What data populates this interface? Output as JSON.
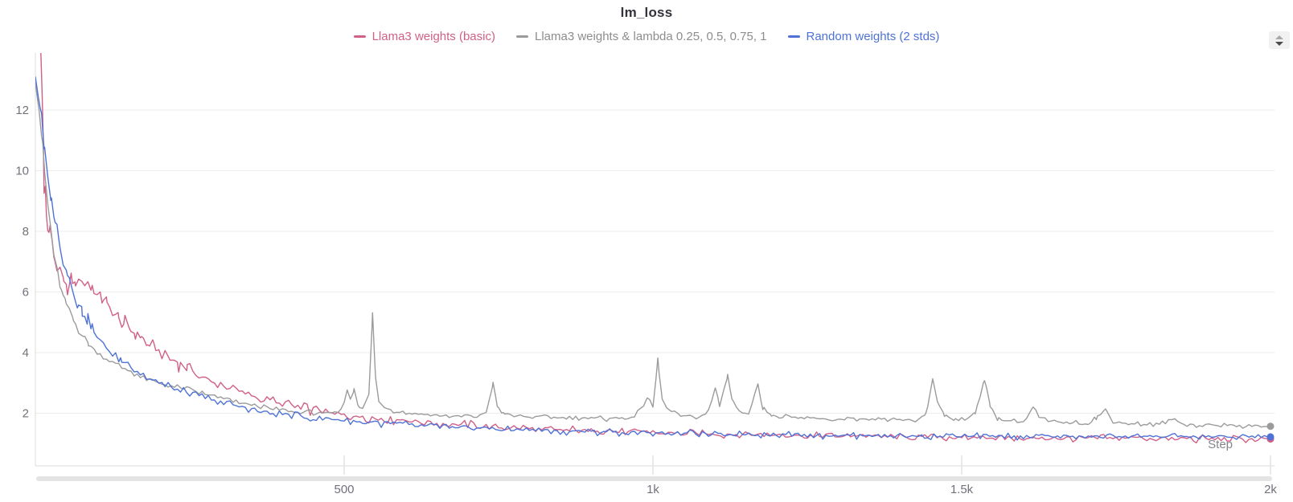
{
  "chart_data": {
    "type": "line",
    "title": "lm_loss",
    "xlabel": "Step",
    "ylabel": "",
    "xlim": [
      0,
      2000
    ],
    "ylim": [
      0,
      14
    ],
    "grid": "horizontal",
    "legend_position": "top-center",
    "xticks": {
      "values": [
        500,
        1000,
        1500,
        2000
      ],
      "labels": [
        "500",
        "1k",
        "1.5k",
        "2k"
      ]
    },
    "yticks": {
      "values": [
        2,
        4,
        6,
        8,
        10,
        12
      ],
      "labels": [
        "2",
        "4",
        "6",
        "8",
        "10",
        "12"
      ]
    },
    "axis_colors": {
      "tick_label": "#72717c",
      "axis_line": "#e2e2e2",
      "gridline": "#ededed",
      "step_label": "#84848d"
    },
    "series": [
      {
        "name": "Llama3 weights (basic)",
        "color": "#d06088",
        "noise": 0.085,
        "seed": 1,
        "points": [
          [
            0,
            15
          ],
          [
            8,
            14.3
          ],
          [
            11,
            12.5
          ],
          [
            13,
            10.5
          ],
          [
            14,
            9.2
          ],
          [
            16,
            9.5
          ],
          [
            18,
            8.6
          ],
          [
            22,
            8.1
          ],
          [
            24,
            8.3
          ],
          [
            27,
            7.5
          ],
          [
            31,
            7.0
          ],
          [
            35,
            6.7
          ],
          [
            40,
            6.45
          ],
          [
            46,
            6.3
          ],
          [
            52,
            6.25
          ],
          [
            58,
            6.35
          ],
          [
            64,
            6.25
          ],
          [
            70,
            6.3
          ],
          [
            75,
            6.5
          ],
          [
            80,
            6.3
          ],
          [
            86,
            6.2
          ],
          [
            92,
            6.1
          ],
          [
            100,
            5.95
          ],
          [
            108,
            5.8
          ],
          [
            116,
            5.65
          ],
          [
            125,
            5.4
          ],
          [
            134,
            5.2
          ],
          [
            143,
            5.0
          ],
          [
            152,
            4.8
          ],
          [
            162,
            4.6
          ],
          [
            172,
            4.45
          ],
          [
            182,
            4.3
          ],
          [
            192,
            4.15
          ],
          [
            205,
            3.95
          ],
          [
            218,
            3.8
          ],
          [
            232,
            3.6
          ],
          [
            246,
            3.45
          ],
          [
            260,
            3.3
          ],
          [
            275,
            3.15
          ],
          [
            290,
            3.0
          ],
          [
            305,
            2.9
          ],
          [
            320,
            2.8
          ],
          [
            335,
            2.7
          ],
          [
            350,
            2.6
          ],
          [
            365,
            2.5
          ],
          [
            385,
            2.4
          ],
          [
            405,
            2.3
          ],
          [
            425,
            2.2
          ],
          [
            445,
            2.12
          ],
          [
            465,
            2.05
          ],
          [
            490,
            1.97
          ],
          [
            515,
            1.9
          ],
          [
            540,
            1.85
          ],
          [
            570,
            1.8
          ],
          [
            600,
            1.75
          ],
          [
            630,
            1.7
          ],
          [
            660,
            1.66
          ],
          [
            690,
            1.62
          ],
          [
            720,
            1.58
          ],
          [
            750,
            1.55
          ],
          [
            790,
            1.51
          ],
          [
            830,
            1.48
          ],
          [
            870,
            1.45
          ],
          [
            910,
            1.42
          ],
          [
            950,
            1.4
          ],
          [
            1000,
            1.37
          ],
          [
            1050,
            1.35
          ],
          [
            1100,
            1.32
          ],
          [
            1150,
            1.3
          ],
          [
            1200,
            1.28
          ],
          [
            1250,
            1.27
          ],
          [
            1300,
            1.25
          ],
          [
            1350,
            1.24
          ],
          [
            1400,
            1.22
          ],
          [
            1450,
            1.21
          ],
          [
            1500,
            1.2
          ],
          [
            1550,
            1.19
          ],
          [
            1600,
            1.18
          ],
          [
            1650,
            1.18
          ],
          [
            1700,
            1.17
          ],
          [
            1750,
            1.17
          ],
          [
            1800,
            1.16
          ],
          [
            1850,
            1.16
          ],
          [
            1900,
            1.15
          ],
          [
            1950,
            1.15
          ],
          [
            2000,
            1.15
          ]
        ]
      },
      {
        "name": "Llama3 weights & lambda 0.25, 0.5, 0.75, 1",
        "color": "#9b9b9b",
        "legend_color": "#8d8d8d",
        "noise": 0.05,
        "seed": 2,
        "points": [
          [
            0,
            13.2
          ],
          [
            6,
            12.0
          ],
          [
            12,
            10.6
          ],
          [
            18,
            9.3
          ],
          [
            24,
            8.2
          ],
          [
            30,
            7.3
          ],
          [
            36,
            6.6
          ],
          [
            42,
            6.1
          ],
          [
            48,
            5.7
          ],
          [
            55,
            5.35
          ],
          [
            62,
            5.05
          ],
          [
            70,
            4.75
          ],
          [
            78,
            4.5
          ],
          [
            86,
            4.3
          ],
          [
            95,
            4.1
          ],
          [
            105,
            3.95
          ],
          [
            115,
            3.8
          ],
          [
            125,
            3.65
          ],
          [
            140,
            3.5
          ],
          [
            155,
            3.35
          ],
          [
            170,
            3.2
          ],
          [
            185,
            3.1
          ],
          [
            200,
            3.0
          ],
          [
            220,
            2.9
          ],
          [
            240,
            2.8
          ],
          [
            260,
            2.72
          ],
          [
            280,
            2.6
          ],
          [
            300,
            2.5
          ],
          [
            320,
            2.4
          ],
          [
            340,
            2.3
          ],
          [
            360,
            2.22
          ],
          [
            385,
            2.12
          ],
          [
            400,
            2.1
          ],
          [
            420,
            2.05
          ],
          [
            440,
            2.02
          ],
          [
            460,
            2.0
          ],
          [
            480,
            1.98
          ],
          [
            495,
            2.1
          ],
          [
            505,
            2.75
          ],
          [
            510,
            2.4
          ],
          [
            516,
            2.8
          ],
          [
            522,
            2.35
          ],
          [
            530,
            2.15
          ],
          [
            540,
            2.6
          ],
          [
            546,
            5.3
          ],
          [
            551,
            3.1
          ],
          [
            556,
            2.4
          ],
          [
            565,
            2.2
          ],
          [
            580,
            2.1
          ],
          [
            600,
            2.02
          ],
          [
            620,
            1.98
          ],
          [
            640,
            1.95
          ],
          [
            660,
            1.93
          ],
          [
            690,
            1.9
          ],
          [
            715,
            1.88
          ],
          [
            730,
            2.0
          ],
          [
            741,
            3.0
          ],
          [
            748,
            2.25
          ],
          [
            758,
            1.98
          ],
          [
            775,
            1.92
          ],
          [
            800,
            1.89
          ],
          [
            830,
            1.87
          ],
          [
            860,
            1.85
          ],
          [
            890,
            1.84
          ],
          [
            920,
            1.83
          ],
          [
            950,
            1.82
          ],
          [
            970,
            1.88
          ],
          [
            980,
            2.1
          ],
          [
            991,
            2.55
          ],
          [
            1000,
            2.2
          ],
          [
            1008,
            3.75
          ],
          [
            1014,
            2.6
          ],
          [
            1022,
            2.15
          ],
          [
            1035,
            1.98
          ],
          [
            1055,
            1.9
          ],
          [
            1075,
            1.86
          ],
          [
            1090,
            2.05
          ],
          [
            1101,
            2.85
          ],
          [
            1108,
            2.25
          ],
          [
            1121,
            3.3
          ],
          [
            1128,
            2.45
          ],
          [
            1140,
            2.0
          ],
          [
            1155,
            2.05
          ],
          [
            1170,
            2.9
          ],
          [
            1178,
            2.2
          ],
          [
            1192,
            1.92
          ],
          [
            1215,
            1.86
          ],
          [
            1245,
            1.83
          ],
          [
            1275,
            1.81
          ],
          [
            1305,
            1.8
          ],
          [
            1335,
            1.79
          ],
          [
            1365,
            1.78
          ],
          [
            1395,
            1.77
          ],
          [
            1425,
            1.76
          ],
          [
            1442,
            1.95
          ],
          [
            1453,
            3.1
          ],
          [
            1461,
            2.35
          ],
          [
            1472,
            1.92
          ],
          [
            1487,
            1.8
          ],
          [
            1505,
            1.76
          ],
          [
            1522,
            2.05
          ],
          [
            1537,
            3.05
          ],
          [
            1546,
            2.25
          ],
          [
            1558,
            1.85
          ],
          [
            1575,
            1.74
          ],
          [
            1600,
            1.71
          ],
          [
            1616,
            2.2
          ],
          [
            1626,
            1.87
          ],
          [
            1645,
            1.71
          ],
          [
            1672,
            1.68
          ],
          [
            1700,
            1.66
          ],
          [
            1718,
            1.85
          ],
          [
            1733,
            2.15
          ],
          [
            1742,
            1.8
          ],
          [
            1760,
            1.66
          ],
          [
            1790,
            1.64
          ],
          [
            1820,
            1.62
          ],
          [
            1845,
            1.8
          ],
          [
            1855,
            1.66
          ],
          [
            1880,
            1.61
          ],
          [
            1910,
            1.6
          ],
          [
            1940,
            1.59
          ],
          [
            1970,
            1.58
          ],
          [
            2000,
            1.57
          ]
        ]
      },
      {
        "name": "Random weights (2 stds)",
        "color": "#4e72d6",
        "noise": 0.075,
        "seed": 3,
        "points": [
          [
            0,
            13.0
          ],
          [
            8,
            12.2
          ],
          [
            14,
            10.8
          ],
          [
            20,
            9.8
          ],
          [
            26,
            9.0
          ],
          [
            32,
            8.4
          ],
          [
            38,
            7.8
          ],
          [
            45,
            7.2
          ],
          [
            52,
            6.6
          ],
          [
            60,
            6.1
          ],
          [
            68,
            5.7
          ],
          [
            76,
            5.35
          ],
          [
            84,
            5.05
          ],
          [
            92,
            4.8
          ],
          [
            100,
            4.55
          ],
          [
            110,
            4.3
          ],
          [
            120,
            4.05
          ],
          [
            125,
            3.9
          ],
          [
            138,
            3.75
          ],
          [
            150,
            3.6
          ],
          [
            165,
            3.4
          ],
          [
            180,
            3.2
          ],
          [
            200,
            3.0
          ],
          [
            220,
            2.85
          ],
          [
            240,
            2.72
          ],
          [
            255,
            2.65
          ],
          [
            270,
            2.55
          ],
          [
            290,
            2.42
          ],
          [
            310,
            2.3
          ],
          [
            330,
            2.2
          ],
          [
            350,
            2.12
          ],
          [
            370,
            2.05
          ],
          [
            385,
            2.0
          ],
          [
            400,
            1.95
          ],
          [
            430,
            1.88
          ],
          [
            460,
            1.82
          ],
          [
            500,
            1.76
          ],
          [
            540,
            1.7
          ],
          [
            580,
            1.65
          ],
          [
            620,
            1.6
          ],
          [
            660,
            1.56
          ],
          [
            700,
            1.52
          ],
          [
            750,
            1.48
          ],
          [
            800,
            1.44
          ],
          [
            850,
            1.41
          ],
          [
            900,
            1.39
          ],
          [
            950,
            1.37
          ],
          [
            1000,
            1.35
          ],
          [
            1060,
            1.33
          ],
          [
            1120,
            1.31
          ],
          [
            1180,
            1.3
          ],
          [
            1240,
            1.29
          ],
          [
            1300,
            1.28
          ],
          [
            1360,
            1.27
          ],
          [
            1420,
            1.26
          ],
          [
            1480,
            1.25
          ],
          [
            1540,
            1.24
          ],
          [
            1600,
            1.24
          ],
          [
            1660,
            1.23
          ],
          [
            1720,
            1.23
          ],
          [
            1780,
            1.23
          ],
          [
            1840,
            1.22
          ],
          [
            1900,
            1.22
          ],
          [
            1950,
            1.22
          ],
          [
            2000,
            1.22
          ]
        ]
      }
    ]
  },
  "controls": {
    "stepper_icons": [
      "chevron-up",
      "chevron-down"
    ]
  }
}
